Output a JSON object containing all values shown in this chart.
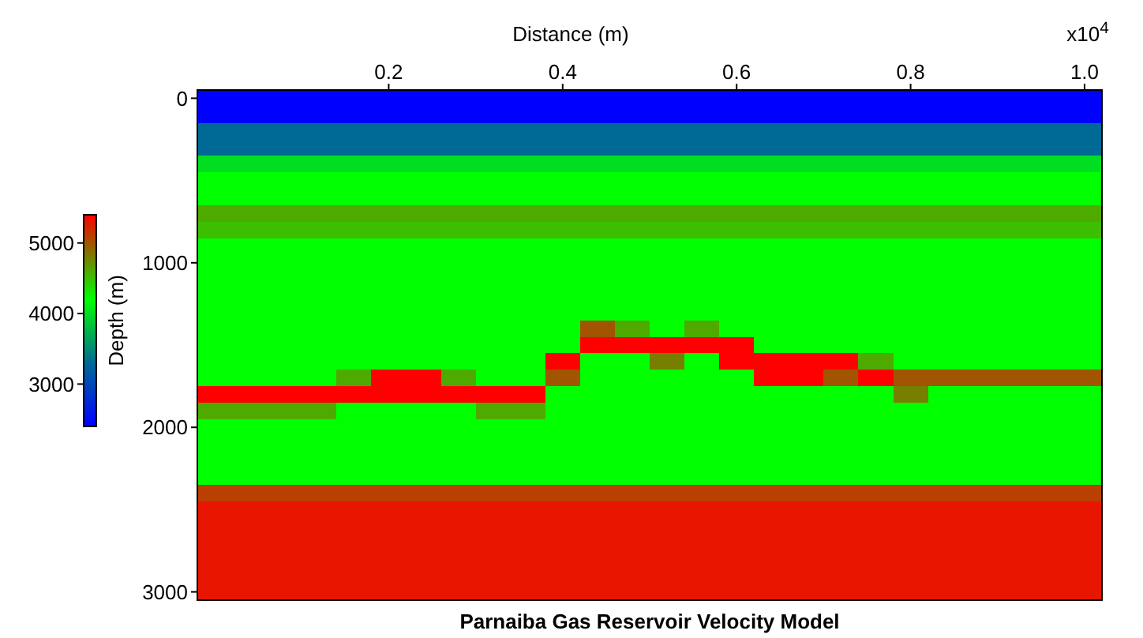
{
  "chart_data": {
    "type": "heatmap",
    "title": "Parnaiba Gas Reservoir Velocity Model",
    "xlabel": "Distance (m)",
    "ylabel": "Depth (m)",
    "annotations": [
      "x10$^{4}$"
    ],
    "clim": [
      2400,
      5400
    ],
    "cticks": [
      3000,
      4000,
      5000
    ],
    "categories": [
      null,
      null,
      null,
      null,
      null,
      "0.2",
      null,
      null,
      null,
      null,
      "0.4",
      null,
      null,
      null,
      null,
      "0.6",
      null,
      null,
      null,
      null,
      "0.8",
      null,
      null,
      null,
      null,
      "1.0"
    ],
    "y_categories": [
      "0",
      null,
      null,
      null,
      null,
      null,
      null,
      null,
      null,
      null,
      "1000",
      null,
      null,
      null,
      null,
      null,
      null,
      null,
      null,
      null,
      "2000",
      null,
      null,
      null,
      null,
      null,
      null,
      null,
      null,
      null,
      "3000"
    ],
    "cells": [
      [
        2400,
        2400,
        2400,
        2400,
        2400,
        2400,
        2400,
        2400,
        2400,
        2400,
        2400,
        2400,
        2400,
        2400,
        2400,
        2400,
        2400,
        2400,
        2400,
        2400,
        2400,
        2400,
        2400,
        2400,
        2400,
        2400
      ],
      [
        2400,
        2400,
        2400,
        2400,
        2400,
        2400,
        2400,
        2400,
        2400,
        2400,
        2400,
        2400,
        2400,
        2400,
        2400,
        2400,
        2400,
        2400,
        2400,
        2400,
        2400,
        2400,
        2400,
        2400,
        2400,
        2400
      ],
      [
        3300,
        3300,
        3300,
        3300,
        3300,
        3300,
        3300,
        3300,
        3300,
        3300,
        3300,
        3300,
        3300,
        3300,
        3300,
        3300,
        3300,
        3300,
        3300,
        3300,
        3300,
        3300,
        3300,
        3300,
        3300,
        3300
      ],
      [
        3300,
        3300,
        3300,
        3300,
        3300,
        3300,
        3300,
        3300,
        3300,
        3300,
        3300,
        3300,
        3300,
        3300,
        3300,
        3300,
        3300,
        3300,
        3300,
        3300,
        3300,
        3300,
        3300,
        3300,
        3300,
        3300
      ],
      [
        4000,
        4000,
        4000,
        4000,
        4000,
        4000,
        4000,
        4000,
        4000,
        4000,
        4000,
        4000,
        4000,
        4000,
        4000,
        4000,
        4000,
        4000,
        4000,
        4000,
        4000,
        4000,
        4000,
        4000,
        4000,
        4000
      ],
      [
        4200,
        4200,
        4200,
        4200,
        4200,
        4200,
        4200,
        4200,
        4200,
        4200,
        4200,
        4200,
        4200,
        4200,
        4200,
        4200,
        4200,
        4200,
        4200,
        4200,
        4200,
        4200,
        4200,
        4200,
        4200,
        4200
      ],
      [
        4200,
        4200,
        4200,
        4200,
        4200,
        4200,
        4200,
        4200,
        4200,
        4200,
        4200,
        4200,
        4200,
        4200,
        4200,
        4200,
        4200,
        4200,
        4200,
        4200,
        4200,
        4200,
        4200,
        4200,
        4200,
        4200
      ],
      [
        4600,
        4600,
        4600,
        4600,
        4600,
        4600,
        4600,
        4600,
        4600,
        4600,
        4600,
        4600,
        4600,
        4600,
        4600,
        4600,
        4600,
        4600,
        4600,
        4600,
        4600,
        4600,
        4600,
        4600,
        4600,
        4600
      ],
      [
        4500,
        4500,
        4500,
        4500,
        4500,
        4500,
        4500,
        4500,
        4500,
        4500,
        4500,
        4500,
        4500,
        4500,
        4500,
        4500,
        4500,
        4500,
        4500,
        4500,
        4500,
        4500,
        4500,
        4500,
        4500,
        4500
      ],
      [
        4200,
        4200,
        4200,
        4200,
        4200,
        4200,
        4200,
        4200,
        4200,
        4200,
        4200,
        4200,
        4200,
        4200,
        4200,
        4200,
        4200,
        4200,
        4200,
        4200,
        4200,
        4200,
        4200,
        4200,
        4200,
        4200
      ],
      [
        4200,
        4200,
        4200,
        4200,
        4200,
        4200,
        4200,
        4200,
        4200,
        4200,
        4200,
        4200,
        4200,
        4200,
        4200,
        4200,
        4200,
        4200,
        4200,
        4200,
        4200,
        4200,
        4200,
        4200,
        4200,
        4200
      ],
      [
        4200,
        4200,
        4200,
        4200,
        4200,
        4200,
        4200,
        4200,
        4200,
        4200,
        4200,
        4200,
        4200,
        4200,
        4200,
        4200,
        4200,
        4200,
        4200,
        4200,
        4200,
        4200,
        4200,
        4200,
        4200,
        4200
      ],
      [
        4200,
        4200,
        4200,
        4200,
        4200,
        4200,
        4200,
        4200,
        4200,
        4200,
        4200,
        4200,
        4200,
        4200,
        4200,
        4200,
        4200,
        4200,
        4200,
        4200,
        4200,
        4200,
        4200,
        4200,
        4200,
        4200
      ],
      [
        4200,
        4200,
        4200,
        4200,
        4200,
        4200,
        4200,
        4200,
        4200,
        4200,
        4200,
        4200,
        4200,
        4200,
        4200,
        4200,
        4200,
        4200,
        4200,
        4200,
        4200,
        4200,
        4200,
        4200,
        4200,
        4200
      ],
      [
        4200,
        4200,
        4200,
        4200,
        4200,
        4200,
        4200,
        4200,
        4200,
        4200,
        4200,
        5000,
        4600,
        4200,
        4600,
        4200,
        4200,
        4200,
        4200,
        4200,
        4200,
        4200,
        4200,
        4200,
        4200,
        4200
      ],
      [
        4200,
        4200,
        4200,
        4200,
        4200,
        4200,
        4200,
        4200,
        4200,
        4200,
        4200,
        5400,
        5400,
        5400,
        5400,
        5400,
        4200,
        4200,
        4200,
        4200,
        4200,
        4200,
        4200,
        4200,
        4200,
        4200
      ],
      [
        4200,
        4200,
        4200,
        4200,
        4200,
        4200,
        4200,
        4200,
        4200,
        4200,
        5400,
        4200,
        4200,
        4800,
        4200,
        5400,
        5400,
        5400,
        5400,
        4600,
        4200,
        4200,
        4200,
        4200,
        4200,
        4200
      ],
      [
        4200,
        4200,
        4200,
        4200,
        4600,
        5400,
        5400,
        4600,
        4200,
        4200,
        5000,
        4200,
        4200,
        4200,
        4200,
        4200,
        5400,
        5400,
        5000,
        5400,
        5000,
        5000,
        5000,
        5000,
        5000,
        5000
      ],
      [
        5400,
        5400,
        5400,
        5400,
        5400,
        5400,
        5400,
        5400,
        5400,
        5400,
        4200,
        4200,
        4200,
        4200,
        4200,
        4200,
        4200,
        4200,
        4200,
        4200,
        4800,
        4200,
        4200,
        4200,
        4200,
        4200
      ],
      [
        4600,
        4600,
        4600,
        4600,
        4200,
        4200,
        4200,
        4200,
        4600,
        4600,
        4200,
        4200,
        4200,
        4200,
        4200,
        4200,
        4200,
        4200,
        4200,
        4200,
        4200,
        4200,
        4200,
        4200,
        4200,
        4200
      ],
      [
        4200,
        4200,
        4200,
        4200,
        4200,
        4200,
        4200,
        4200,
        4200,
        4200,
        4200,
        4200,
        4200,
        4200,
        4200,
        4200,
        4200,
        4200,
        4200,
        4200,
        4200,
        4200,
        4200,
        4200,
        4200,
        4200
      ],
      [
        4200,
        4200,
        4200,
        4200,
        4200,
        4200,
        4200,
        4200,
        4200,
        4200,
        4200,
        4200,
        4200,
        4200,
        4200,
        4200,
        4200,
        4200,
        4200,
        4200,
        4200,
        4200,
        4200,
        4200,
        4200,
        4200
      ],
      [
        4200,
        4200,
        4200,
        4200,
        4200,
        4200,
        4200,
        4200,
        4200,
        4200,
        4200,
        4200,
        4200,
        4200,
        4200,
        4200,
        4200,
        4200,
        4200,
        4200,
        4200,
        4200,
        4200,
        4200,
        4200,
        4200
      ],
      [
        4200,
        4200,
        4200,
        4200,
        4200,
        4200,
        4200,
        4200,
        4200,
        4200,
        4200,
        4200,
        4200,
        4200,
        4200,
        4200,
        4200,
        4200,
        4200,
        4200,
        4200,
        4200,
        4200,
        4200,
        4200,
        4200
      ],
      [
        5100,
        5100,
        5100,
        5100,
        5100,
        5100,
        5100,
        5100,
        5100,
        5100,
        5100,
        5100,
        5100,
        5100,
        5100,
        5100,
        5100,
        5100,
        5100,
        5100,
        5100,
        5100,
        5100,
        5100,
        5100,
        5100
      ],
      [
        5300,
        5300,
        5300,
        5300,
        5300,
        5300,
        5300,
        5300,
        5300,
        5300,
        5300,
        5300,
        5300,
        5300,
        5300,
        5300,
        5300,
        5300,
        5300,
        5300,
        5300,
        5300,
        5300,
        5300,
        5300,
        5300
      ],
      [
        5300,
        5300,
        5300,
        5300,
        5300,
        5300,
        5300,
        5300,
        5300,
        5300,
        5300,
        5300,
        5300,
        5300,
        5300,
        5300,
        5300,
        5300,
        5300,
        5300,
        5300,
        5300,
        5300,
        5300,
        5300,
        5300
      ],
      [
        5300,
        5300,
        5300,
        5300,
        5300,
        5300,
        5300,
        5300,
        5300,
        5300,
        5300,
        5300,
        5300,
        5300,
        5300,
        5300,
        5300,
        5300,
        5300,
        5300,
        5300,
        5300,
        5300,
        5300,
        5300,
        5300
      ],
      [
        5300,
        5300,
        5300,
        5300,
        5300,
        5300,
        5300,
        5300,
        5300,
        5300,
        5300,
        5300,
        5300,
        5300,
        5300,
        5300,
        5300,
        5300,
        5300,
        5300,
        5300,
        5300,
        5300,
        5300,
        5300,
        5300
      ],
      [
        5300,
        5300,
        5300,
        5300,
        5300,
        5300,
        5300,
        5300,
        5300,
        5300,
        5300,
        5300,
        5300,
        5300,
        5300,
        5300,
        5300,
        5300,
        5300,
        5300,
        5300,
        5300,
        5300,
        5300,
        5300,
        5300
      ],
      [
        5300,
        5300,
        5300,
        5300,
        5300,
        5300,
        5300,
        5300,
        5300,
        5300,
        5300,
        5300,
        5300,
        5300,
        5300,
        5300,
        5300,
        5300,
        5300,
        5300,
        5300,
        5300,
        5300,
        5300,
        5300,
        5300
      ]
    ]
  }
}
